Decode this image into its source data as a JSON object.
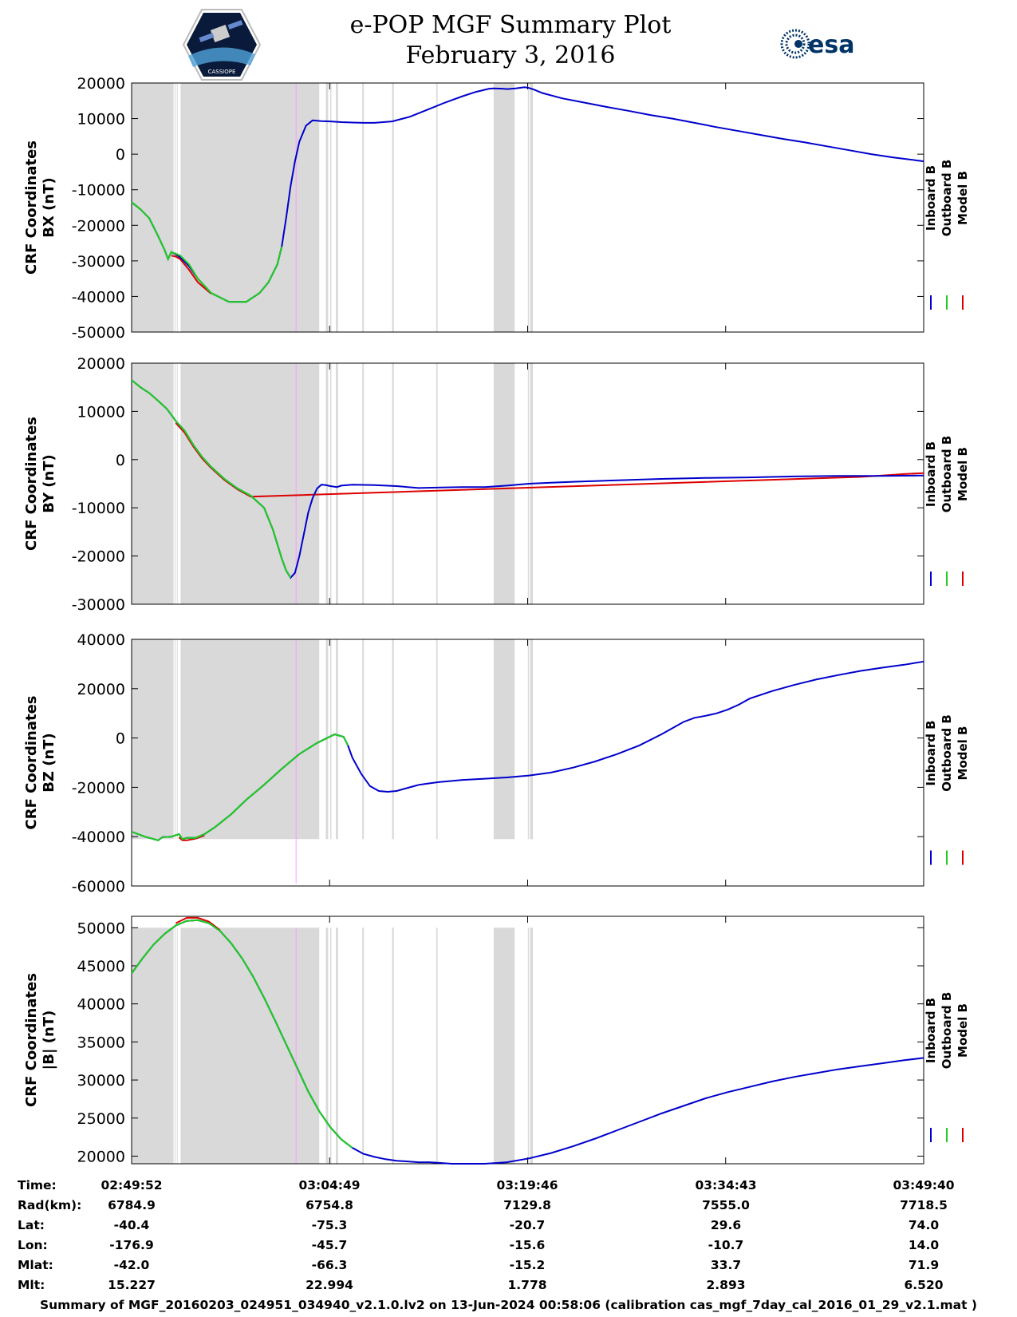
{
  "header": {
    "title_line1": "e-POP MGF Summary Plot",
    "title_line2": "February 3, 2016",
    "esa_logo_text": "esa",
    "epop_logo_text": "CASSIOPE"
  },
  "colors": {
    "inboard": "#0000cc",
    "outboard": "#22cc22",
    "model": "#dd0000",
    "shade": "#d9d9d9",
    "marker": "#ff99ff"
  },
  "legend": [
    "Inboard B",
    "Outboard B",
    "Model B"
  ],
  "shaded_intervals_sec": [
    [
      0,
      190
    ],
    [
      195,
      197
    ],
    [
      205,
      208
    ],
    [
      222,
      850
    ],
    [
      880,
      890
    ],
    [
      900,
      905
    ],
    [
      925,
      935
    ],
    [
      1045,
      1052
    ],
    [
      1180,
      1188
    ],
    [
      1380,
      1386
    ],
    [
      1640,
      1735
    ],
    [
      1795,
      1800
    ],
    [
      1805,
      1818
    ]
  ],
  "marker_sec": 745,
  "chart_data": [
    {
      "type": "line",
      "ylabel_line1": "CRF Coordinates",
      "ylabel_line2": "BX (nT)",
      "ylim": [
        -50000,
        20000
      ],
      "yticks": [
        20000,
        10000,
        0,
        -10000,
        -20000,
        -30000,
        -40000,
        -50000
      ],
      "xlim": [
        0,
        3588
      ],
      "green_end_sec": 680,
      "series": [
        {
          "name": "Inboard B",
          "x": [
            0,
            40,
            80,
            120,
            150,
            165,
            180,
            200,
            220,
            260,
            300,
            360,
            440,
            520,
            580,
            620,
            660,
            680,
            700,
            720,
            740,
            760,
            790,
            820,
            860,
            900,
            950,
            1000,
            1050,
            1100,
            1180,
            1260,
            1340,
            1420,
            1500,
            1560,
            1620,
            1640,
            1680,
            1700,
            1740,
            1780,
            1800,
            1820,
            1860,
            1950,
            2050,
            2150,
            2250,
            2350,
            2450,
            2550,
            2650,
            2750,
            2850,
            2950,
            3050,
            3150,
            3250,
            3350,
            3450,
            3588
          ],
          "y": [
            -13500,
            -15500,
            -18000,
            -23000,
            -27000,
            -29500,
            -27500,
            -28200,
            -29000,
            -31500,
            -35000,
            -39000,
            -41500,
            -41500,
            -39000,
            -36000,
            -31000,
            -26000,
            -18000,
            -9000,
            -2000,
            3500,
            8000,
            9500,
            9300,
            9200,
            9000,
            8900,
            8800,
            8800,
            9200,
            10500,
            12500,
            14500,
            16300,
            17500,
            18400,
            18500,
            18400,
            18300,
            18500,
            18800,
            18600,
            18200,
            17200,
            15700,
            14500,
            13300,
            12200,
            11000,
            10000,
            8800,
            7600,
            6500,
            5400,
            4300,
            3300,
            2200,
            1100,
            0,
            -900,
            -2000
          ]
        },
        {
          "name": "Outboard B",
          "x": [
            0,
            40,
            80,
            120,
            150,
            165,
            180,
            200,
            220,
            260,
            300,
            360,
            440,
            520,
            580,
            620,
            660,
            680
          ],
          "y": [
            -13500,
            -15500,
            -18000,
            -23000,
            -27000,
            -29500,
            -27500,
            -28000,
            -28500,
            -31000,
            -35000,
            -39000,
            -41500,
            -41500,
            -39000,
            -36000,
            -31000,
            -26000
          ]
        },
        {
          "name": "Model B",
          "x": [
            180,
            200,
            220,
            260,
            300,
            360
          ],
          "y": [
            -28500,
            -28800,
            -29500,
            -32500,
            -36000,
            -39200
          ]
        }
      ]
    },
    {
      "type": "line",
      "ylabel_line1": "CRF Coordinates",
      "ylabel_line2": "BY (nT)",
      "ylim": [
        -30000,
        20000
      ],
      "yticks": [
        20000,
        10000,
        0,
        -10000,
        -20000,
        -30000
      ],
      "xlim": [
        0,
        3588
      ],
      "green_end_sec": 720,
      "series": [
        {
          "name": "Inboard B",
          "x": [
            0,
            40,
            80,
            120,
            160,
            200,
            240,
            280,
            320,
            360,
            420,
            480,
            540,
            600,
            640,
            680,
            700,
            720,
            740,
            760,
            780,
            800,
            820,
            840,
            860,
            880,
            900,
            930,
            950,
            1000,
            1100,
            1200,
            1300,
            1400,
            1500,
            1600,
            1700,
            1800,
            1900,
            2000,
            2200,
            2400,
            2600,
            2800,
            3000,
            3200,
            3400,
            3588
          ],
          "y": [
            16500,
            15000,
            13800,
            12200,
            10500,
            8000,
            6000,
            3000,
            500,
            -1500,
            -4000,
            -6000,
            -7500,
            -10000,
            -14500,
            -20500,
            -23000,
            -24500,
            -23500,
            -20000,
            -15500,
            -11000,
            -8000,
            -6000,
            -5200,
            -5300,
            -5500,
            -5700,
            -5400,
            -5200,
            -5300,
            -5500,
            -5900,
            -5800,
            -5700,
            -5700,
            -5400,
            -5000,
            -4800,
            -4600,
            -4300,
            -4000,
            -3800,
            -3700,
            -3500,
            -3400,
            -3400,
            -3300
          ]
        },
        {
          "name": "Outboard B",
          "x": [
            0,
            40,
            80,
            120,
            160,
            200,
            240,
            280,
            320,
            360,
            420,
            480,
            540,
            600,
            640,
            680,
            700,
            720
          ],
          "y": [
            16500,
            15000,
            13800,
            12200,
            10500,
            8000,
            6000,
            3000,
            500,
            -1500,
            -4000,
            -6000,
            -7500,
            -10000,
            -14500,
            -20500,
            -23000,
            -24500
          ]
        },
        {
          "name": "Model B",
          "x": [
            200,
            240,
            280,
            320,
            360,
            420,
            480,
            540,
            3300,
            3400,
            3500,
            3588
          ],
          "y": [
            7600,
            5600,
            2700,
            200,
            -1700,
            -4200,
            -6200,
            -7700,
            -3600,
            -3300,
            -3000,
            -2800
          ]
        }
      ]
    },
    {
      "type": "line",
      "ylabel_line1": "CRF Coordinates",
      "ylabel_line2": "BZ (nT)",
      "ylim": [
        -60000,
        40000
      ],
      "yticks": [
        40000,
        20000,
        0,
        -20000,
        -40000,
        -60000
      ],
      "xlim": [
        0,
        3588
      ],
      "green_end_sec": 980,
      "series": [
        {
          "name": "Inboard B",
          "x": [
            0,
            60,
            120,
            140,
            180,
            215,
            230,
            250,
            290,
            330,
            380,
            450,
            520,
            600,
            680,
            760,
            840,
            920,
            960,
            980,
            1000,
            1040,
            1080,
            1120,
            1160,
            1200,
            1240,
            1280,
            1300,
            1340,
            1380,
            1400,
            1450,
            1500,
            1600,
            1700,
            1800,
            1900,
            2000,
            2100,
            2200,
            2300,
            2400,
            2450,
            2500,
            2550,
            2600,
            2650,
            2700,
            2750,
            2800,
            2900,
            3000,
            3100,
            3200,
            3300,
            3400,
            3500,
            3588
          ],
          "y": [
            -38000,
            -40000,
            -41500,
            -40200,
            -40000,
            -39000,
            -41000,
            -40500,
            -40500,
            -39000,
            -36000,
            -31000,
            -25000,
            -19000,
            -12500,
            -6500,
            -2000,
            1500,
            500,
            -3000,
            -8000,
            -14500,
            -19500,
            -21500,
            -21800,
            -21500,
            -20500,
            -19500,
            -19000,
            -18500,
            -18000,
            -17800,
            -17400,
            -17000,
            -16500,
            -16000,
            -15200,
            -14000,
            -12000,
            -9500,
            -6500,
            -3000,
            1500,
            4000,
            6500,
            8200,
            9000,
            10000,
            11500,
            13500,
            16000,
            19000,
            21500,
            23700,
            25500,
            27200,
            28500,
            29700,
            31000
          ]
        },
        {
          "name": "Outboard B",
          "x": [
            0,
            60,
            120,
            140,
            180,
            215,
            230,
            250,
            290,
            330,
            380,
            450,
            520,
            600,
            680,
            760,
            840,
            920,
            960,
            980
          ],
          "y": [
            -38000,
            -40000,
            -41500,
            -40200,
            -40000,
            -39000,
            -41000,
            -40500,
            -40500,
            -39000,
            -36000,
            -31000,
            -25000,
            -19000,
            -12500,
            -6500,
            -2000,
            1500,
            500,
            -3000
          ]
        },
        {
          "name": "Model B",
          "x": [
            215,
            230,
            250,
            290,
            330
          ],
          "y": [
            -40300,
            -41500,
            -41500,
            -40800,
            -39500
          ]
        }
      ]
    },
    {
      "type": "line",
      "ylabel_line1": "CRF Coordinates",
      "ylabel_line2": "|B| (nT)",
      "ylim": [
        19000,
        51500
      ],
      "yticks": [
        50000,
        45000,
        40000,
        35000,
        30000,
        25000,
        20000
      ],
      "xlim": [
        0,
        3588
      ],
      "green_end_sec": 1000,
      "series": [
        {
          "name": "Inboard B",
          "x": [
            0,
            50,
            100,
            150,
            200,
            250,
            300,
            350,
            400,
            450,
            500,
            550,
            600,
            650,
            700,
            750,
            800,
            850,
            900,
            950,
            1000,
            1050,
            1100,
            1150,
            1200,
            1250,
            1300,
            1350,
            1400,
            1450,
            1500,
            1600,
            1700,
            1800,
            1900,
            2000,
            2100,
            2200,
            2300,
            2400,
            2500,
            2600,
            2700,
            2800,
            2900,
            3000,
            3100,
            3200,
            3300,
            3400,
            3500,
            3588
          ],
          "y": [
            44000,
            46000,
            47800,
            49200,
            50300,
            50900,
            51000,
            50600,
            49600,
            48000,
            46000,
            43600,
            40800,
            37800,
            34700,
            31600,
            28500,
            25900,
            23800,
            22200,
            21100,
            20300,
            19900,
            19600,
            19400,
            19300,
            19200,
            19200,
            19100,
            19000,
            19000,
            19000,
            19200,
            19700,
            20400,
            21300,
            22300,
            23400,
            24500,
            25600,
            26600,
            27600,
            28400,
            29100,
            29800,
            30400,
            30900,
            31400,
            31800,
            32200,
            32600,
            32900
          ]
        },
        {
          "name": "Outboard B",
          "x": [
            0,
            50,
            100,
            150,
            200,
            250,
            300,
            350,
            400,
            450,
            500,
            550,
            600,
            650,
            700,
            750,
            800,
            850,
            900,
            950,
            1000
          ],
          "y": [
            44000,
            46000,
            47800,
            49200,
            50300,
            50900,
            51000,
            50600,
            49600,
            48000,
            46000,
            43600,
            40800,
            37800,
            34700,
            31600,
            28500,
            25900,
            23800,
            22200,
            21100
          ]
        },
        {
          "name": "Model B",
          "x": [
            200,
            250,
            300,
            350,
            400
          ],
          "y": [
            50600,
            51300,
            51300,
            50800,
            49700
          ]
        }
      ]
    }
  ],
  "ephemeris": {
    "labels": [
      "Time:",
      "Rad(km):",
      "Lat:",
      "Lon:",
      "Mlat:",
      "Mlt:"
    ],
    "columns": [
      {
        "values": [
          "02:49:52",
          "6784.9",
          "-40.4",
          "-176.9",
          "-42.0",
          "15.227"
        ]
      },
      {
        "values": [
          "03:04:49",
          "6754.8",
          "-75.3",
          "-45.7",
          "-66.3",
          "22.994"
        ]
      },
      {
        "values": [
          "03:19:46",
          "7129.8",
          "-20.7",
          "-15.6",
          "-15.2",
          "1.778"
        ]
      },
      {
        "values": [
          "03:34:43",
          "7555.0",
          "29.6",
          "-10.7",
          "33.7",
          "2.893"
        ]
      },
      {
        "values": [
          "03:49:40",
          "7718.5",
          "74.0",
          "14.0",
          "71.9",
          "6.520"
        ]
      }
    ]
  },
  "footer": "Summary of MGF_20160203_024951_034940_v2.1.0.lv2 on 13-Jun-2024 00:58:06 (calibration cas_mgf_7day_cal_2016_01_29_v2.1.mat )"
}
